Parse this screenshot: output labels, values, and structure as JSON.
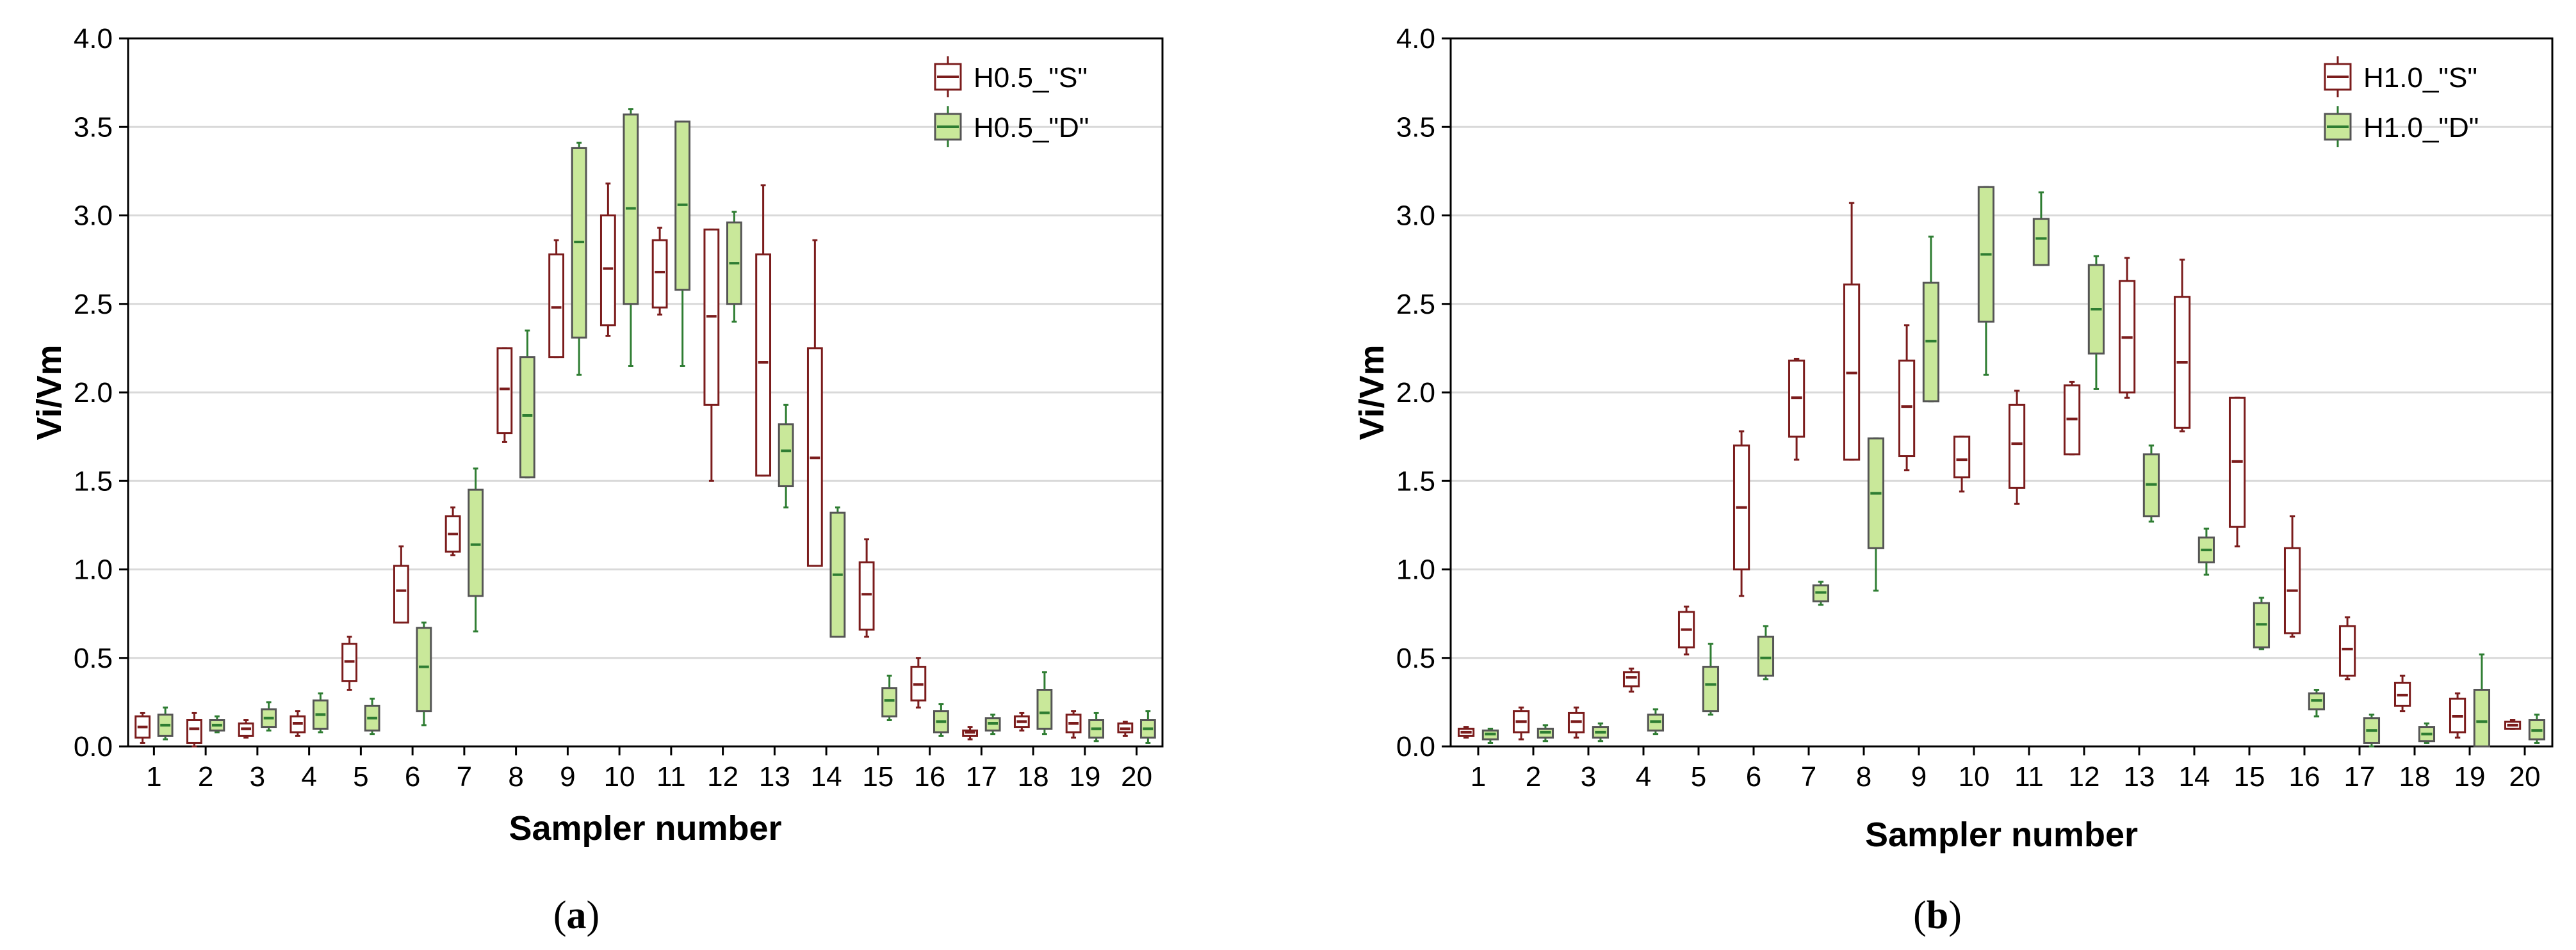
{
  "colors": {
    "S": "#7b1c1c",
    "D_fill": "#c9e89a",
    "D_stroke": "#2e7d32",
    "grid": "#d9d9d9"
  },
  "chart_data": [
    {
      "type": "box",
      "caption_prefix": "(",
      "caption_letter": "a",
      "caption_suffix": ")",
      "xlabel": "Sampler number",
      "ylabel": "Vi/Vm",
      "ylim": [
        0,
        4
      ],
      "yticks": [
        "0.0",
        "0.5",
        "1.0",
        "1.5",
        "2.0",
        "2.5",
        "3.0",
        "3.5",
        "4.0"
      ],
      "categories": [
        "1",
        "2",
        "3",
        "4",
        "5",
        "6",
        "7",
        "8",
        "9",
        "10",
        "11",
        "12",
        "13",
        "14",
        "15",
        "16",
        "17",
        "18",
        "19",
        "20"
      ],
      "grid": true,
      "legend": "top-right",
      "series": [
        {
          "name": "H0.5_\"S\"",
          "boxes": [
            {
              "x": 1,
              "min": 0.02,
              "q1": 0.05,
              "med": 0.11,
              "q3": 0.17,
              "max": 0.19
            },
            {
              "x": 2,
              "min": 0.0,
              "q1": 0.02,
              "med": 0.1,
              "q3": 0.15,
              "max": 0.19
            },
            {
              "x": 3,
              "min": 0.05,
              "q1": 0.06,
              "med": 0.1,
              "q3": 0.13,
              "max": 0.15
            },
            {
              "x": 4,
              "min": 0.06,
              "q1": 0.08,
              "med": 0.13,
              "q3": 0.17,
              "max": 0.2
            },
            {
              "x": 5,
              "min": 0.32,
              "q1": 0.37,
              "med": 0.48,
              "q3": 0.58,
              "max": 0.62
            },
            {
              "x": 6,
              "min": 0.7,
              "q1": 0.7,
              "med": 0.88,
              "q3": 1.02,
              "max": 1.13
            },
            {
              "x": 7,
              "min": 1.08,
              "q1": 1.1,
              "med": 1.2,
              "q3": 1.3,
              "max": 1.35
            },
            {
              "x": 8,
              "min": 1.72,
              "q1": 1.77,
              "med": 2.02,
              "q3": 2.25,
              "max": 2.25
            },
            {
              "x": 9,
              "min": 2.2,
              "q1": 2.2,
              "med": 2.48,
              "q3": 2.78,
              "max": 2.86
            },
            {
              "x": 10,
              "min": 2.32,
              "q1": 2.38,
              "med": 2.7,
              "q3": 3.0,
              "max": 3.18
            },
            {
              "x": 11,
              "min": 2.44,
              "q1": 2.48,
              "med": 2.68,
              "q3": 2.86,
              "max": 2.93
            },
            {
              "x": 12,
              "min": 1.5,
              "q1": 1.93,
              "med": 2.43,
              "q3": 2.92,
              "max": 2.92
            },
            {
              "x": 13,
              "min": 1.53,
              "q1": 1.53,
              "med": 2.17,
              "q3": 2.78,
              "max": 3.17
            },
            {
              "x": 14,
              "min": 1.02,
              "q1": 1.02,
              "med": 1.63,
              "q3": 2.25,
              "max": 2.86
            },
            {
              "x": 15,
              "min": 0.62,
              "q1": 0.66,
              "med": 0.86,
              "q3": 1.04,
              "max": 1.17
            },
            {
              "x": 16,
              "min": 0.22,
              "q1": 0.26,
              "med": 0.35,
              "q3": 0.45,
              "max": 0.5
            },
            {
              "x": 17,
              "min": 0.04,
              "q1": 0.06,
              "med": 0.08,
              "q3": 0.09,
              "max": 0.11
            },
            {
              "x": 18,
              "min": 0.09,
              "q1": 0.11,
              "med": 0.14,
              "q3": 0.17,
              "max": 0.19
            },
            {
              "x": 19,
              "min": 0.05,
              "q1": 0.08,
              "med": 0.13,
              "q3": 0.18,
              "max": 0.2
            },
            {
              "x": 20,
              "min": 0.06,
              "q1": 0.08,
              "med": 0.1,
              "q3": 0.13,
              "max": 0.14
            }
          ]
        },
        {
          "name": "H0.5_\"D\"",
          "boxes": [
            {
              "x": 1,
              "min": 0.04,
              "q1": 0.06,
              "med": 0.12,
              "q3": 0.18,
              "max": 0.22
            },
            {
              "x": 2,
              "min": 0.08,
              "q1": 0.09,
              "med": 0.12,
              "q3": 0.15,
              "max": 0.17
            },
            {
              "x": 3,
              "min": 0.09,
              "q1": 0.11,
              "med": 0.16,
              "q3": 0.21,
              "max": 0.25
            },
            {
              "x": 4,
              "min": 0.08,
              "q1": 0.1,
              "med": 0.18,
              "q3": 0.26,
              "max": 0.3
            },
            {
              "x": 5,
              "min": 0.07,
              "q1": 0.09,
              "med": 0.16,
              "q3": 0.23,
              "max": 0.27
            },
            {
              "x": 6,
              "min": 0.12,
              "q1": 0.2,
              "med": 0.45,
              "q3": 0.67,
              "max": 0.7
            },
            {
              "x": 7,
              "min": 0.65,
              "q1": 0.85,
              "med": 1.14,
              "q3": 1.45,
              "max": 1.57
            },
            {
              "x": 8,
              "min": 1.52,
              "q1": 1.52,
              "med": 1.87,
              "q3": 2.2,
              "max": 2.35
            },
            {
              "x": 9,
              "min": 2.1,
              "q1": 2.31,
              "med": 2.85,
              "q3": 3.38,
              "max": 3.41
            },
            {
              "x": 10,
              "min": 2.15,
              "q1": 2.5,
              "med": 3.04,
              "q3": 3.57,
              "max": 3.6
            },
            {
              "x": 11,
              "min": 2.15,
              "q1": 2.58,
              "med": 3.06,
              "q3": 3.53,
              "max": 3.53
            },
            {
              "x": 12,
              "min": 2.4,
              "q1": 2.5,
              "med": 2.73,
              "q3": 2.96,
              "max": 3.02
            },
            {
              "x": 13,
              "min": 1.35,
              "q1": 1.47,
              "med": 1.67,
              "q3": 1.82,
              "max": 1.93
            },
            {
              "x": 14,
              "min": 0.62,
              "q1": 0.62,
              "med": 0.97,
              "q3": 1.32,
              "max": 1.35
            },
            {
              "x": 15,
              "min": 0.15,
              "q1": 0.17,
              "med": 0.26,
              "q3": 0.33,
              "max": 0.4
            },
            {
              "x": 16,
              "min": 0.06,
              "q1": 0.08,
              "med": 0.14,
              "q3": 0.2,
              "max": 0.24
            },
            {
              "x": 17,
              "min": 0.07,
              "q1": 0.09,
              "med": 0.13,
              "q3": 0.16,
              "max": 0.18
            },
            {
              "x": 18,
              "min": 0.07,
              "q1": 0.1,
              "med": 0.19,
              "q3": 0.32,
              "max": 0.42
            },
            {
              "x": 19,
              "min": 0.03,
              "q1": 0.05,
              "med": 0.1,
              "q3": 0.15,
              "max": 0.19
            },
            {
              "x": 20,
              "min": 0.02,
              "q1": 0.05,
              "med": 0.1,
              "q3": 0.15,
              "max": 0.2
            }
          ]
        }
      ]
    },
    {
      "type": "box",
      "caption_prefix": "(",
      "caption_letter": "b",
      "caption_suffix": ")",
      "xlabel": "Sampler number",
      "ylabel": "Vi/Vm",
      "ylim": [
        0,
        4
      ],
      "yticks": [
        "0.0",
        "0.5",
        "1.0",
        "1.5",
        "2.0",
        "2.5",
        "3.0",
        "3.5",
        "4.0"
      ],
      "categories": [
        "1",
        "2",
        "3",
        "4",
        "5",
        "6",
        "7",
        "8",
        "9",
        "10",
        "11",
        "12",
        "13",
        "14",
        "15",
        "16",
        "17",
        "18",
        "19",
        "20"
      ],
      "grid": true,
      "legend": "top-right",
      "series": [
        {
          "name": "H1.0_\"S\"",
          "boxes": [
            {
              "x": 1,
              "min": 0.05,
              "q1": 0.06,
              "med": 0.08,
              "q3": 0.1,
              "max": 0.11
            },
            {
              "x": 2,
              "min": 0.04,
              "q1": 0.08,
              "med": 0.14,
              "q3": 0.2,
              "max": 0.22
            },
            {
              "x": 3,
              "min": 0.05,
              "q1": 0.08,
              "med": 0.14,
              "q3": 0.19,
              "max": 0.22
            },
            {
              "x": 4,
              "min": 0.31,
              "q1": 0.34,
              "med": 0.39,
              "q3": 0.42,
              "max": 0.44
            },
            {
              "x": 5,
              "min": 0.52,
              "q1": 0.56,
              "med": 0.66,
              "q3": 0.76,
              "max": 0.79
            },
            {
              "x": 6,
              "min": 0.85,
              "q1": 1.0,
              "med": 1.35,
              "q3": 1.7,
              "max": 1.78
            },
            {
              "x": 7,
              "min": 1.62,
              "q1": 1.75,
              "med": 1.97,
              "q3": 2.18,
              "max": 2.19
            },
            {
              "x": 8,
              "min": 1.62,
              "q1": 1.62,
              "med": 2.11,
              "q3": 2.61,
              "max": 3.07
            },
            {
              "x": 9,
              "min": 1.56,
              "q1": 1.64,
              "med": 1.92,
              "q3": 2.18,
              "max": 2.38
            },
            {
              "x": 10,
              "min": 1.44,
              "q1": 1.52,
              "med": 1.62,
              "q3": 1.75,
              "max": 1.75
            },
            {
              "x": 11,
              "min": 1.37,
              "q1": 1.46,
              "med": 1.71,
              "q3": 1.93,
              "max": 2.01
            },
            {
              "x": 12,
              "min": 1.65,
              "q1": 1.65,
              "med": 1.85,
              "q3": 2.04,
              "max": 2.06
            },
            {
              "x": 13,
              "min": 1.97,
              "q1": 2.0,
              "med": 2.31,
              "q3": 2.63,
              "max": 2.76
            },
            {
              "x": 14,
              "min": 1.78,
              "q1": 1.8,
              "med": 2.17,
              "q3": 2.54,
              "max": 2.75
            },
            {
              "x": 15,
              "min": 1.13,
              "q1": 1.24,
              "med": 1.61,
              "q3": 1.97,
              "max": 1.97
            },
            {
              "x": 16,
              "min": 0.62,
              "q1": 0.64,
              "med": 0.88,
              "q3": 1.12,
              "max": 1.3
            },
            {
              "x": 17,
              "min": 0.38,
              "q1": 0.4,
              "med": 0.55,
              "q3": 0.68,
              "max": 0.73
            },
            {
              "x": 18,
              "min": 0.2,
              "q1": 0.23,
              "med": 0.29,
              "q3": 0.36,
              "max": 0.4
            },
            {
              "x": 19,
              "min": 0.05,
              "q1": 0.08,
              "med": 0.17,
              "q3": 0.27,
              "max": 0.3
            },
            {
              "x": 20,
              "min": 0.1,
              "q1": 0.1,
              "med": 0.12,
              "q3": 0.14,
              "max": 0.15
            }
          ]
        },
        {
          "name": "H1.0_\"D\"",
          "boxes": [
            {
              "x": 1,
              "min": 0.02,
              "q1": 0.04,
              "med": 0.07,
              "q3": 0.09,
              "max": 0.1
            },
            {
              "x": 2,
              "min": 0.03,
              "q1": 0.05,
              "med": 0.08,
              "q3": 0.1,
              "max": 0.12
            },
            {
              "x": 3,
              "min": 0.03,
              "q1": 0.05,
              "med": 0.08,
              "q3": 0.11,
              "max": 0.13
            },
            {
              "x": 4,
              "min": 0.07,
              "q1": 0.09,
              "med": 0.14,
              "q3": 0.18,
              "max": 0.21
            },
            {
              "x": 5,
              "min": 0.18,
              "q1": 0.2,
              "med": 0.35,
              "q3": 0.45,
              "max": 0.58
            },
            {
              "x": 6,
              "min": 0.38,
              "q1": 0.4,
              "med": 0.5,
              "q3": 0.62,
              "max": 0.68
            },
            {
              "x": 7,
              "min": 0.8,
              "q1": 0.82,
              "med": 0.87,
              "q3": 0.91,
              "max": 0.93
            },
            {
              "x": 8,
              "min": 0.88,
              "q1": 1.12,
              "med": 1.43,
              "q3": 1.74,
              "max": 1.74
            },
            {
              "x": 9,
              "min": 1.95,
              "q1": 1.95,
              "med": 2.29,
              "q3": 2.62,
              "max": 2.88
            },
            {
              "x": 10,
              "min": 2.1,
              "q1": 2.4,
              "med": 2.78,
              "q3": 3.16,
              "max": 3.16
            },
            {
              "x": 11,
              "min": 2.72,
              "q1": 2.72,
              "med": 2.87,
              "q3": 2.98,
              "max": 3.13
            },
            {
              "x": 12,
              "min": 2.02,
              "q1": 2.22,
              "med": 2.47,
              "q3": 2.72,
              "max": 2.77
            },
            {
              "x": 13,
              "min": 1.27,
              "q1": 1.3,
              "med": 1.48,
              "q3": 1.65,
              "max": 1.7
            },
            {
              "x": 14,
              "min": 0.97,
              "q1": 1.04,
              "med": 1.11,
              "q3": 1.18,
              "max": 1.23
            },
            {
              "x": 15,
              "min": 0.55,
              "q1": 0.56,
              "med": 0.69,
              "q3": 0.81,
              "max": 0.84
            },
            {
              "x": 16,
              "min": 0.17,
              "q1": 0.21,
              "med": 0.26,
              "q3": 0.3,
              "max": 0.32
            },
            {
              "x": 17,
              "min": 0.0,
              "q1": 0.02,
              "med": 0.09,
              "q3": 0.16,
              "max": 0.18
            },
            {
              "x": 18,
              "min": 0.02,
              "q1": 0.03,
              "med": 0.07,
              "q3": 0.11,
              "max": 0.13
            },
            {
              "x": 19,
              "min": 0.0,
              "q1": 0.0,
              "med": 0.14,
              "q3": 0.32,
              "max": 0.52
            },
            {
              "x": 20,
              "min": 0.02,
              "q1": 0.04,
              "med": 0.09,
              "q3": 0.15,
              "max": 0.18
            }
          ]
        }
      ]
    }
  ]
}
